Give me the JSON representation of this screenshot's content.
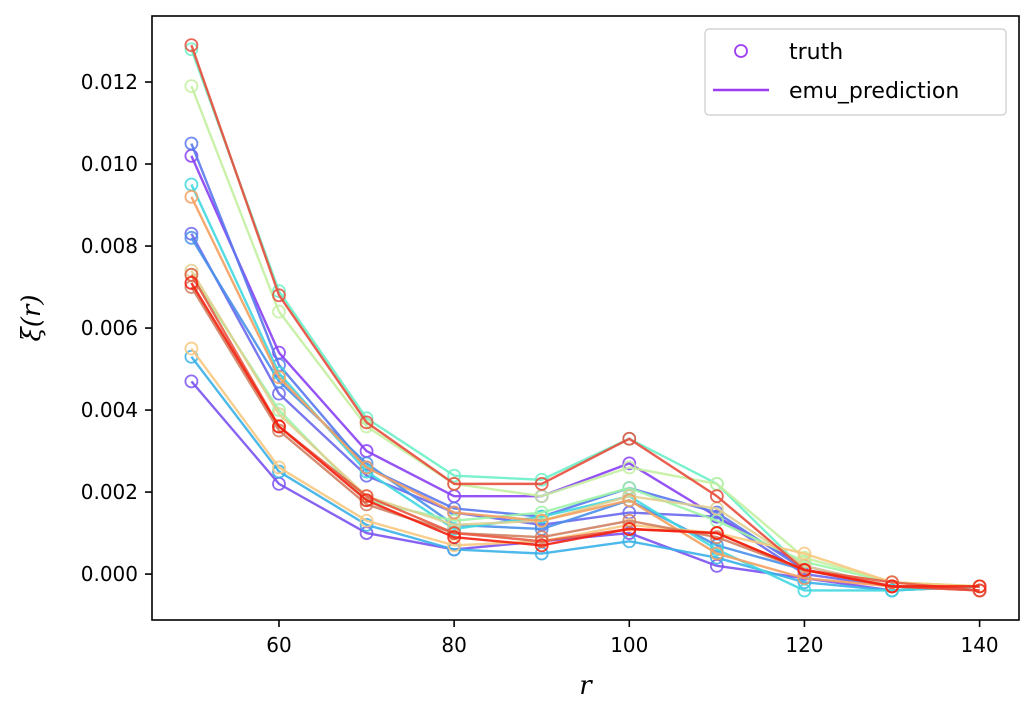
{
  "chart_data": {
    "type": "line",
    "title": "",
    "xlabel": "r",
    "ylabel": "ξ(r)",
    "x": [
      50,
      60,
      70,
      80,
      90,
      100,
      110,
      120,
      130,
      140
    ],
    "xlim": [
      45.5,
      144.5
    ],
    "ylim": [
      -0.00112,
      0.01361
    ],
    "xticks": [
      60,
      80,
      100,
      120,
      140
    ],
    "xtick_labels": [
      "60",
      "80",
      "100",
      "120",
      "140"
    ],
    "yticks": [
      0,
      0.002,
      0.004,
      0.006,
      0.008,
      0.01,
      0.012
    ],
    "ytick_labels": [
      "0.000",
      "0.002",
      "0.004",
      "0.006",
      "0.008",
      "0.010",
      "0.012"
    ],
    "grid": false,
    "legend_position": "top-right",
    "legend": [
      {
        "label": "truth",
        "marker": "open-circle",
        "color": "#9e3cf4"
      },
      {
        "label": "emu_prediction",
        "marker": "line",
        "color": "#9e3cf4"
      }
    ],
    "series": [
      {
        "color": "#8a3ff4",
        "values": [
          0.0102,
          0.0054,
          0.003,
          0.0019,
          0.0019,
          0.0027,
          0.0014,
          0.0002,
          -0.0003,
          -0.0003
        ]
      },
      {
        "color": "#7b52f0",
        "values": [
          0.0047,
          0.0022,
          0.001,
          0.0006,
          0.0008,
          0.001,
          0.0002,
          -0.0001,
          -0.0004,
          -0.0003
        ]
      },
      {
        "color": "#6a68ee",
        "values": [
          0.0083,
          0.0044,
          0.0024,
          0.0015,
          0.0012,
          0.0015,
          0.0014,
          0.0,
          -0.0003,
          -0.0003
        ]
      },
      {
        "color": "#5a78ed",
        "values": [
          0.0105,
          0.0051,
          0.0026,
          0.0016,
          0.0014,
          0.0021,
          0.0015,
          0.0001,
          -0.0003,
          -0.0003
        ]
      },
      {
        "color": "#4a90ea",
        "values": [
          0.0082,
          0.0047,
          0.0027,
          0.0012,
          0.0011,
          0.0018,
          0.0007,
          0.0001,
          -0.0003,
          -0.0003
        ]
      },
      {
        "color": "#3ab0e8",
        "values": [
          0.0053,
          0.0025,
          0.0012,
          0.0006,
          0.0005,
          0.0008,
          0.0004,
          -0.0002,
          -0.0004,
          -0.0003
        ]
      },
      {
        "color": "#40d8e0",
        "values": [
          0.0095,
          0.0049,
          0.0025,
          0.0011,
          0.0014,
          0.0019,
          0.0006,
          -0.0004,
          -0.0004,
          -0.0003
        ]
      },
      {
        "color": "#6cf0c8",
        "values": [
          0.0128,
          0.0069,
          0.0038,
          0.0024,
          0.0023,
          0.0033,
          0.0022,
          0.0001,
          -0.0003,
          -0.0003
        ]
      },
      {
        "color": "#9cf4a8",
        "values": [
          0.0073,
          0.004,
          0.0018,
          0.0013,
          0.0015,
          0.0021,
          0.0013,
          0.0003,
          -0.0002,
          -0.0003
        ]
      },
      {
        "color": "#c4f0a0",
        "values": [
          0.0119,
          0.0064,
          0.0036,
          0.0022,
          0.0019,
          0.0026,
          0.0022,
          0.0004,
          -0.0002,
          -0.0003
        ]
      },
      {
        "color": "#e0d090",
        "values": [
          0.0074,
          0.0039,
          0.0019,
          0.0012,
          0.0013,
          0.0019,
          0.0016,
          0.0002,
          -0.0003,
          -0.0003
        ]
      },
      {
        "color": "#f8c880",
        "values": [
          0.0055,
          0.0026,
          0.0013,
          0.0007,
          0.0008,
          0.0012,
          0.001,
          0.0005,
          -0.0002,
          -0.0003
        ]
      },
      {
        "color": "#f4a060",
        "values": [
          0.0092,
          0.0048,
          0.0026,
          0.0015,
          0.0013,
          0.0018,
          0.0005,
          -0.0001,
          -0.0003,
          -0.0004
        ]
      },
      {
        "color": "#d08060",
        "values": [
          0.007,
          0.0035,
          0.0017,
          0.001,
          0.0009,
          0.0013,
          0.0009,
          0.0001,
          -0.0003,
          -0.0004
        ]
      },
      {
        "color": "#e85a42",
        "values": [
          0.0073,
          0.0036,
          0.0019,
          0.001,
          0.0008,
          0.0011,
          0.001,
          0.0001,
          -0.0002,
          -0.0004
        ]
      },
      {
        "color": "#e84c3c",
        "values": [
          0.0129,
          0.0068,
          0.0037,
          0.0022,
          0.0022,
          0.0033,
          0.0019,
          0.0001,
          -0.0003,
          -0.0004
        ]
      },
      {
        "color": "#f42010",
        "values": [
          0.0071,
          0.0036,
          0.0018,
          0.0009,
          0.0007,
          0.0011,
          0.001,
          0.0001,
          -0.0003,
          -0.0003
        ]
      }
    ]
  }
}
